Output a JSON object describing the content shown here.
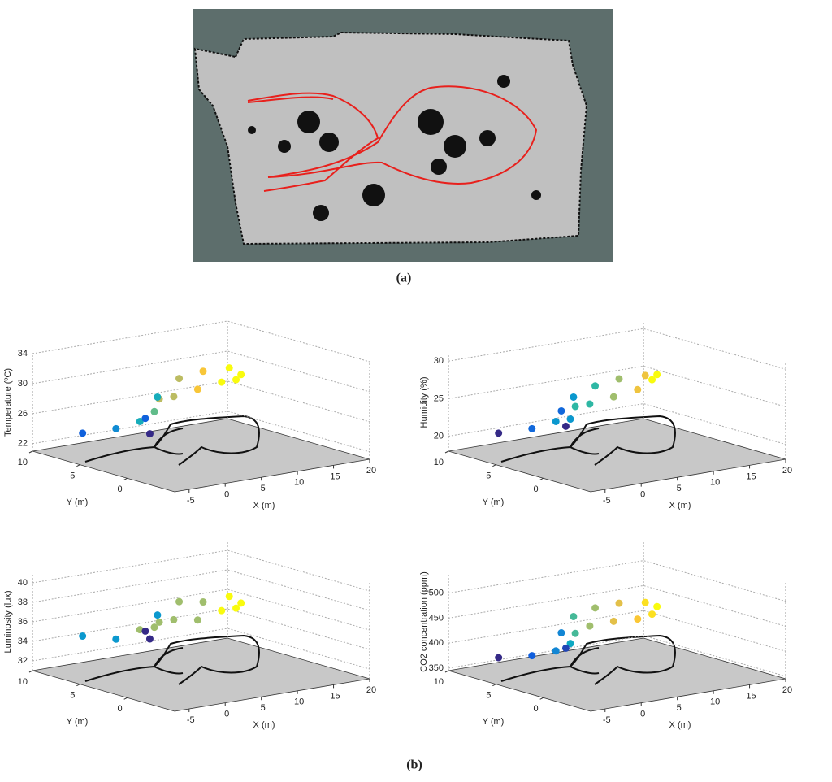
{
  "captions": {
    "a": "(a)",
    "b": "(b)"
  },
  "chart_data": [
    {
      "type": "scatter3d",
      "zlabel": "Temperature (ºC)",
      "xlabel": "X (m)",
      "ylabel": "Y (m)",
      "colormap": "parula",
      "grid": true,
      "xlim": [
        -7,
        20
      ],
      "ylim": [
        -5,
        10
      ],
      "zlim": [
        21,
        34
      ],
      "xticks": [
        -5,
        0,
        5,
        10,
        15,
        20
      ],
      "yticks": [
        10,
        5,
        0
      ],
      "zticks": [
        22,
        26,
        30,
        34
      ],
      "x": [
        -4,
        -2,
        0,
        2,
        4,
        6,
        8,
        10,
        12,
        14,
        15,
        14,
        12,
        9,
        6,
        4
      ],
      "y": [
        7,
        5,
        4,
        4,
        5,
        5,
        4,
        3,
        3,
        4,
        6,
        8,
        9,
        9,
        8,
        6
      ],
      "z": [
        24,
        25,
        26,
        27,
        28,
        28,
        29,
        30,
        30,
        30,
        30,
        29,
        28,
        26,
        24,
        23
      ]
    },
    {
      "type": "scatter3d",
      "zlabel": "Humidity (%)",
      "xlabel": "X (m)",
      "ylabel": "Y (m)",
      "colormap": "parula",
      "grid": true,
      "xlim": [
        -7,
        20
      ],
      "ylim": [
        -5,
        10
      ],
      "zlim": [
        18,
        31
      ],
      "xticks": [
        -5,
        0,
        5,
        10,
        15,
        20
      ],
      "yticks": [
        10,
        5,
        0
      ],
      "zticks": [
        20,
        25,
        30
      ],
      "x": [
        -4,
        -2,
        0,
        2,
        4,
        6,
        8,
        10,
        12,
        14,
        15,
        14,
        12,
        9,
        6,
        4
      ],
      "y": [
        7,
        5,
        4,
        4,
        5,
        5,
        4,
        3,
        3,
        4,
        6,
        8,
        9,
        9,
        8,
        6
      ],
      "z": [
        21,
        22,
        23,
        23,
        24,
        24,
        25,
        26,
        27,
        27,
        26,
        25,
        24,
        23,
        22,
        21
      ]
    },
    {
      "type": "scatter3d",
      "zlabel": "Luminosity (lux)",
      "xlabel": "X (m)",
      "ylabel": "Y (m)",
      "colormap": "parula",
      "grid": true,
      "xlim": [
        -7,
        20
      ],
      "ylim": [
        -5,
        10
      ],
      "zlim": [
        31,
        41
      ],
      "xticks": [
        -5,
        0,
        5,
        10,
        15,
        20
      ],
      "yticks": [
        10,
        5,
        0
      ],
      "zticks": [
        32,
        34,
        36,
        38,
        40
      ],
      "x": [
        -4,
        -2,
        0,
        2,
        4,
        6,
        8,
        10,
        12,
        14,
        15,
        14,
        12,
        9,
        6,
        4
      ],
      "y": [
        7,
        5,
        4,
        4,
        5,
        5,
        4,
        3,
        3,
        4,
        6,
        8,
        9,
        9,
        8,
        6
      ],
      "z": [
        35,
        35,
        36,
        36,
        36,
        36,
        36,
        37,
        37,
        37,
        37,
        36,
        36,
        35,
        34,
        34
      ]
    },
    {
      "type": "scatter3d",
      "zlabel": "CO2 concentration (ppm)",
      "xlabel": "X (m)",
      "ylabel": "Y (m)",
      "colormap": "parula",
      "grid": true,
      "xlim": [
        -7,
        20
      ],
      "ylim": [
        -5,
        10
      ],
      "zlim": [
        345,
        540
      ],
      "xticks": [
        -5,
        0,
        5,
        10,
        15,
        20
      ],
      "yticks": [
        10,
        5,
        0
      ],
      "zticks": [
        350,
        400,
        450,
        500
      ],
      "x": [
        -4,
        -2,
        0,
        2,
        4,
        6,
        8,
        10,
        12,
        14,
        15,
        14,
        12,
        9,
        6,
        4
      ],
      "y": [
        7,
        5,
        4,
        4,
        5,
        5,
        4,
        3,
        3,
        4,
        6,
        8,
        9,
        9,
        8,
        6
      ],
      "z": [
        380,
        390,
        400,
        410,
        420,
        430,
        440,
        445,
        450,
        455,
        450,
        440,
        430,
        420,
        400,
        385
      ]
    }
  ]
}
